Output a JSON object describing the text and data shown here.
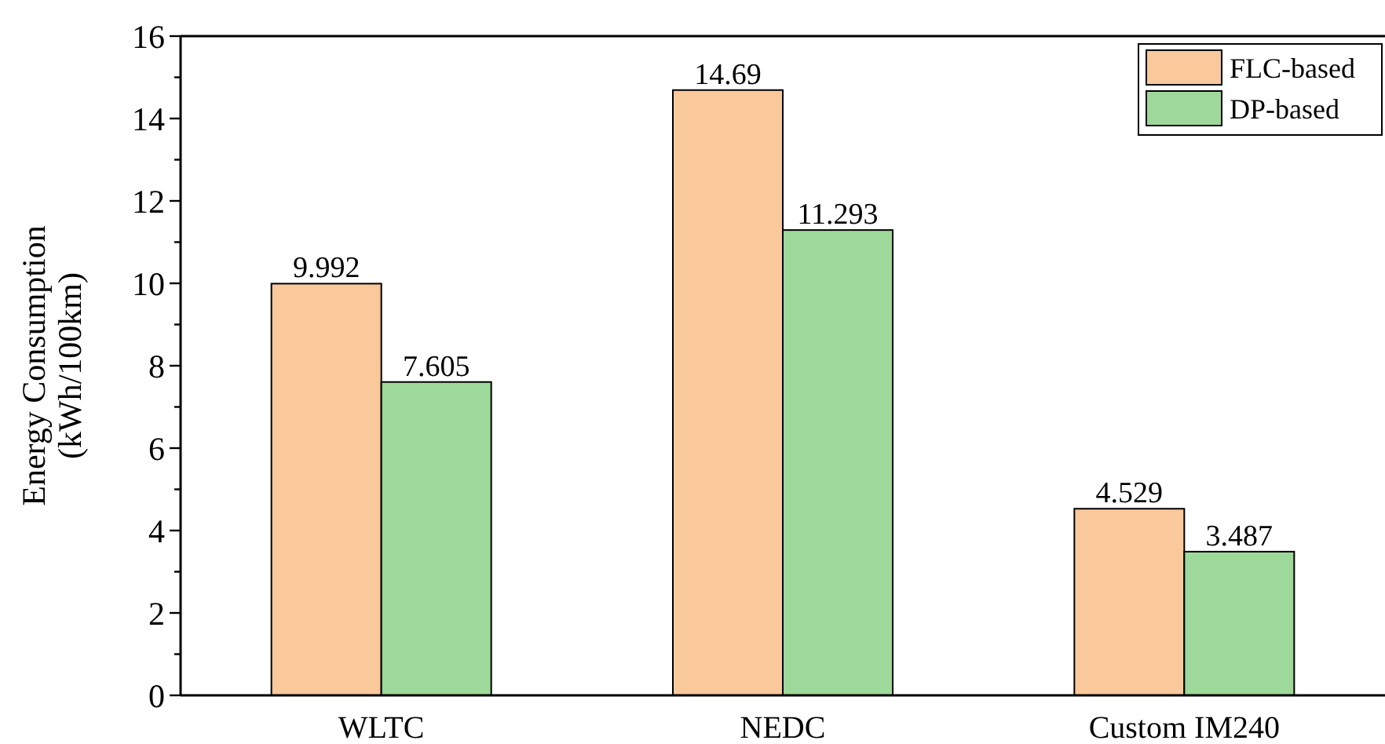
{
  "chart_data": {
    "type": "bar",
    "ylabel": "Energy Consumption\n(kWh/100km)",
    "categories": [
      "WLTC",
      "NEDC",
      "Custom IM240"
    ],
    "series": [
      {
        "name": "FLC-based",
        "color": "#f9c89b",
        "values": [
          9.992,
          14.69,
          4.529
        ]
      },
      {
        "name": "DP-based",
        "color": "#9ed89a",
        "values": [
          7.605,
          11.293,
          3.487
        ]
      }
    ],
    "ylim": [
      0,
      16
    ],
    "yticks": [
      0,
      {
        "value": 1,
        "label": null
      },
      2,
      {
        "value": 3,
        "label": null
      },
      4,
      {
        "value": 5,
        "label": null
      },
      6,
      {
        "value": 7,
        "label": null
      },
      8,
      {
        "value": 9,
        "label": null
      },
      10,
      {
        "value": 11,
        "label": null
      },
      12,
      {
        "value": 13,
        "label": null
      },
      14,
      {
        "value": 15,
        "label": null
      },
      16
    ],
    "data_labels": true,
    "legend": "top right",
    "grid": false
  }
}
